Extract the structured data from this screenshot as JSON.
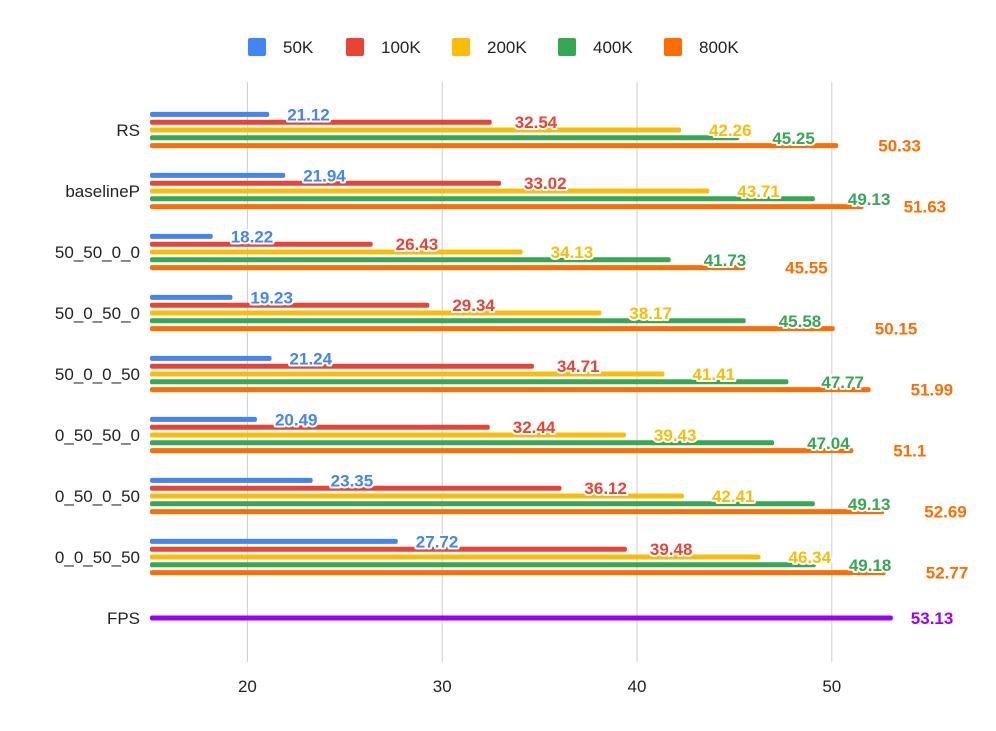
{
  "chart_data": {
    "type": "bar",
    "orientation": "horizontal",
    "title": "",
    "xlabel": "",
    "ylabel": "",
    "xlim": [
      15,
      53.5
    ],
    "x_ticks": [
      20,
      30,
      40,
      50
    ],
    "grid": true,
    "legend_position": "top",
    "categories": [
      "RS",
      "baselineP",
      "50_50_0_0",
      "50_0_50_0",
      "50_0_0_50",
      "0_50_50_0",
      "0_50_0_50",
      "0_0_50_50"
    ],
    "series": [
      {
        "name": "50K",
        "color": "#4285f4",
        "values": [
          21.12,
          21.94,
          18.22,
          19.23,
          21.24,
          20.49,
          23.35,
          27.72
        ]
      },
      {
        "name": "100K",
        "color": "#ea4335",
        "values": [
          32.54,
          33.02,
          26.43,
          29.34,
          34.71,
          32.44,
          36.12,
          39.48
        ]
      },
      {
        "name": "200K",
        "color": "#fbbc04",
        "values": [
          42.26,
          43.71,
          34.13,
          38.17,
          41.41,
          39.43,
          42.41,
          46.34
        ]
      },
      {
        "name": "400K",
        "color": "#34a853",
        "values": [
          45.25,
          49.13,
          41.73,
          45.58,
          47.77,
          47.04,
          49.13,
          49.18
        ]
      },
      {
        "name": "800K",
        "color": "#ff6d01",
        "values": [
          50.33,
          51.63,
          45.55,
          50.15,
          51.99,
          51.1,
          52.69,
          52.77
        ]
      }
    ],
    "reference": {
      "name": "FPS",
      "color": "#9900ff",
      "value": 53.13
    }
  }
}
